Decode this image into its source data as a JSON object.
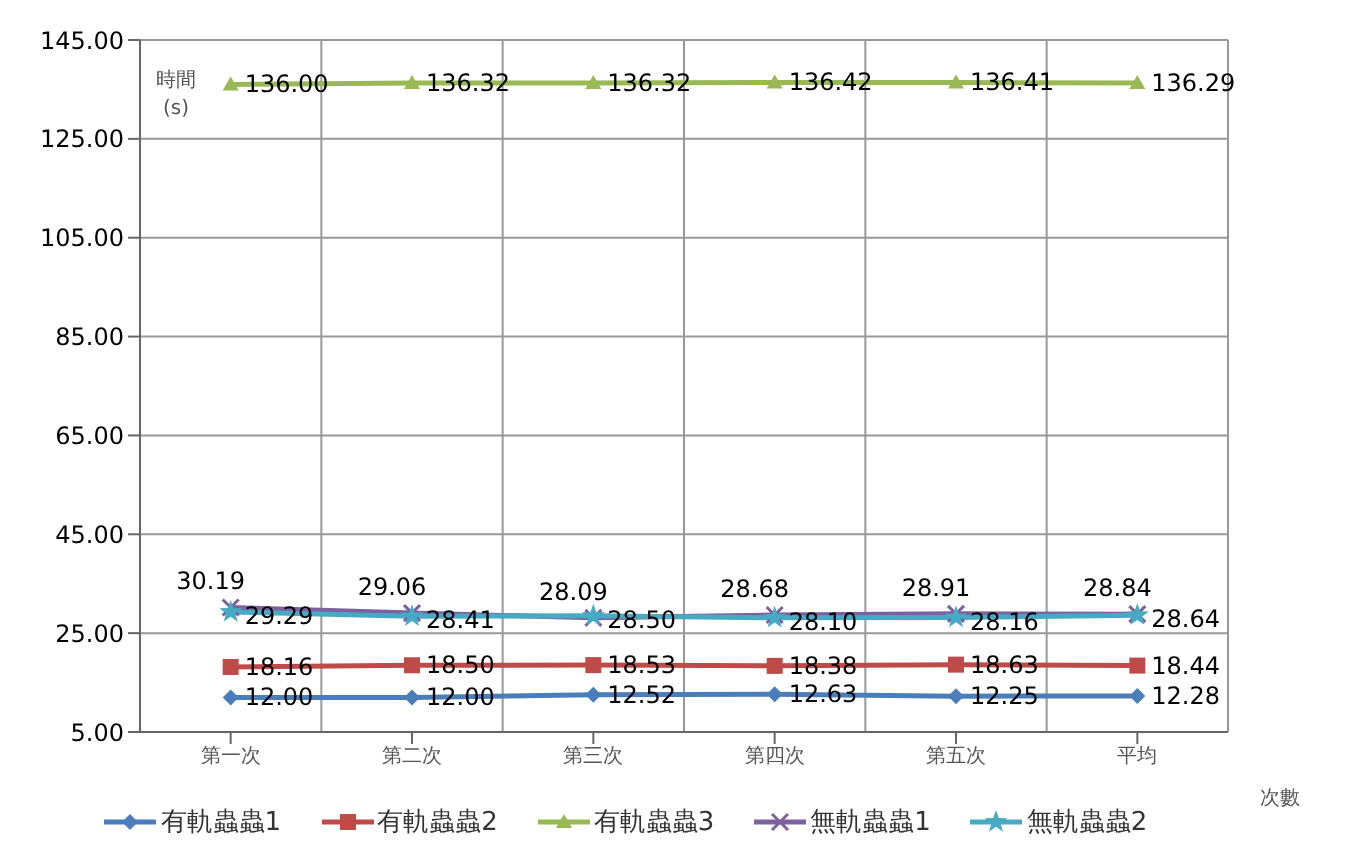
{
  "chart_data": {
    "type": "line",
    "ylabel": "時間\n(s)",
    "xlabel": "次數",
    "categories": [
      "第一次",
      "第二次",
      "第三次",
      "第四次",
      "第五次",
      "平均"
    ],
    "series": [
      {
        "name": "有軌蟲蟲1",
        "color": "#4a7ebb",
        "marker": "diamond",
        "values": [
          12.0,
          12.0,
          12.52,
          12.63,
          12.25,
          12.28
        ],
        "value_labels": [
          "12.00",
          "12.00",
          "12.52",
          "12.63",
          "12.25",
          "12.28"
        ]
      },
      {
        "name": "有軌蟲蟲2",
        "color": "#be4b48",
        "marker": "square",
        "values": [
          18.16,
          18.5,
          18.53,
          18.38,
          18.63,
          18.44
        ],
        "value_labels": [
          "18.16",
          "18.50",
          "18.53",
          "18.38",
          "18.63",
          "18.44"
        ]
      },
      {
        "name": "有軌蟲蟲3",
        "color": "#98b954",
        "marker": "triangle",
        "values": [
          136.0,
          136.32,
          136.32,
          136.42,
          136.41,
          136.29
        ],
        "value_labels": [
          "136.00",
          "136.32",
          "136.32",
          "136.42",
          "136.41",
          "136.29"
        ]
      },
      {
        "name": "無軌蟲蟲1",
        "color": "#7d60a0",
        "marker": "cross",
        "values": [
          30.19,
          29.06,
          28.09,
          28.68,
          28.91,
          28.84
        ],
        "value_labels": [
          "30.19",
          "29.06",
          "28.09",
          "28.68",
          "28.91",
          "28.84"
        ]
      },
      {
        "name": "無軌蟲蟲2",
        "color": "#46aac5",
        "marker": "star",
        "values": [
          29.29,
          28.41,
          28.5,
          28.1,
          28.16,
          28.64
        ],
        "value_labels": [
          "29.29",
          "28.41",
          "28.50",
          "28.10",
          "28.16",
          "28.64"
        ]
      }
    ],
    "ylim": [
      5,
      145
    ],
    "yticks": [
      {
        "value": 5,
        "label": "5.00"
      },
      {
        "value": 25,
        "label": "25.00"
      },
      {
        "value": 45,
        "label": "45.00"
      },
      {
        "value": 65,
        "label": "65.00"
      },
      {
        "value": 85,
        "label": "85.00"
      },
      {
        "value": 105,
        "label": "105.00"
      },
      {
        "value": 125,
        "label": "125.00"
      },
      {
        "value": 145,
        "label": "145.00"
      }
    ],
    "grid": true,
    "legend": "bottom"
  }
}
